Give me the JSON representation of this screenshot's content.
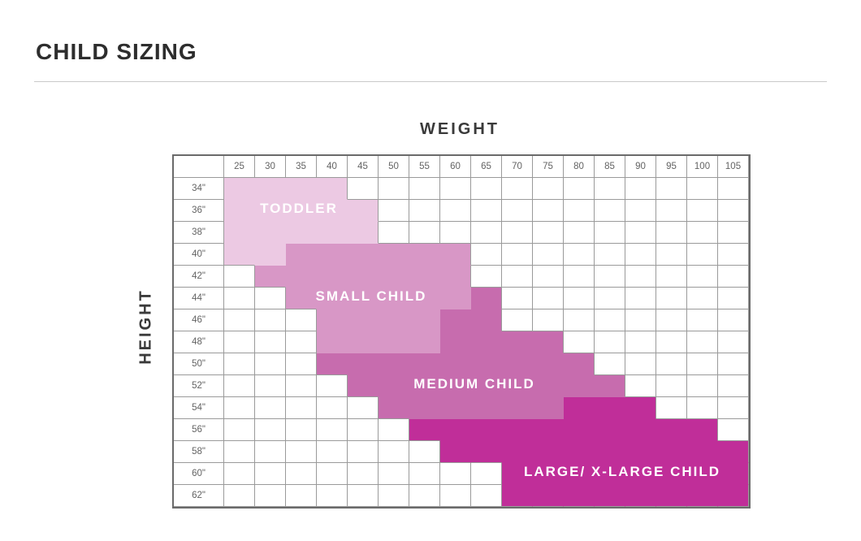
{
  "page": {
    "title": "CHILD SIZING"
  },
  "colors": {
    "toddler": "#ecc9e3",
    "small_child": "#d897c6",
    "medium_child": "#c76cae",
    "large_child": "#c02e99",
    "grid_line": "#9a9a9a",
    "grid_border": "#6a6a6a",
    "header_text": "#636363",
    "title_text": "#2d2d2d",
    "region_label_text": "#ffffff"
  },
  "chart_data": {
    "type": "heatmap",
    "title": "CHILD SIZING",
    "xlabel": "WEIGHT",
    "ylabel": "HEIGHT",
    "grid": "on",
    "x_ticks": [
      "25",
      "30",
      "35",
      "40",
      "45",
      "50",
      "55",
      "60",
      "65",
      "70",
      "75",
      "80",
      "85",
      "90",
      "95",
      "100",
      "105"
    ],
    "y_ticks": [
      "34\"",
      "36\"",
      "38\"",
      "40\"",
      "42\"",
      "44\"",
      "46\"",
      "48\"",
      "50\"",
      "52\"",
      "54\"",
      "56\"",
      "58\"",
      "60\"",
      "62\""
    ],
    "region_colors": {
      "T": "#ecc9e3",
      "S": "#d897c6",
      "M": "#c76cae",
      "L": "#c02e99"
    },
    "regions": [
      {
        "id": "T",
        "name": "TODDLER",
        "heights": "34\"-40\""
      },
      {
        "id": "S",
        "name": "SMALL CHILD",
        "heights": "40\"-48\""
      },
      {
        "id": "M",
        "name": "MEDIUM CHILD",
        "heights": "44\"-54\""
      },
      {
        "id": "L",
        "name": "LARGE/ X-LARGE CHILD",
        "heights": "54\"-62\""
      }
    ],
    "rows": [
      {
        "label": "34\"",
        "pattern": "TTTT............."
      },
      {
        "label": "36\"",
        "pattern": "TTTTT............"
      },
      {
        "label": "38\"",
        "pattern": "TTTTT............"
      },
      {
        "label": "40\"",
        "pattern": "TTSSSSSS........."
      },
      {
        "label": "42\"",
        "pattern": ".SSSSSSS........."
      },
      {
        "label": "44\"",
        "pattern": "..SSSSSSM........"
      },
      {
        "label": "46\"",
        "pattern": "...SSSSMM........"
      },
      {
        "label": "48\"",
        "pattern": "...SSSSMMMM......"
      },
      {
        "label": "50\"",
        "pattern": "...MMMMMMMMM....."
      },
      {
        "label": "52\"",
        "pattern": "....MMMMMMMMM...."
      },
      {
        "label": "54\"",
        "pattern": ".....MMMMMMLLL..."
      },
      {
        "label": "56\"",
        "pattern": "......LLLLLLLLLL."
      },
      {
        "label": "58\"",
        "pattern": ".......LLLLLLLLLL"
      },
      {
        "label": "60\"",
        "pattern": ".........LLLLLLLL"
      },
      {
        "label": "62\"",
        "pattern": ".........LLLLLLLL"
      }
    ]
  }
}
